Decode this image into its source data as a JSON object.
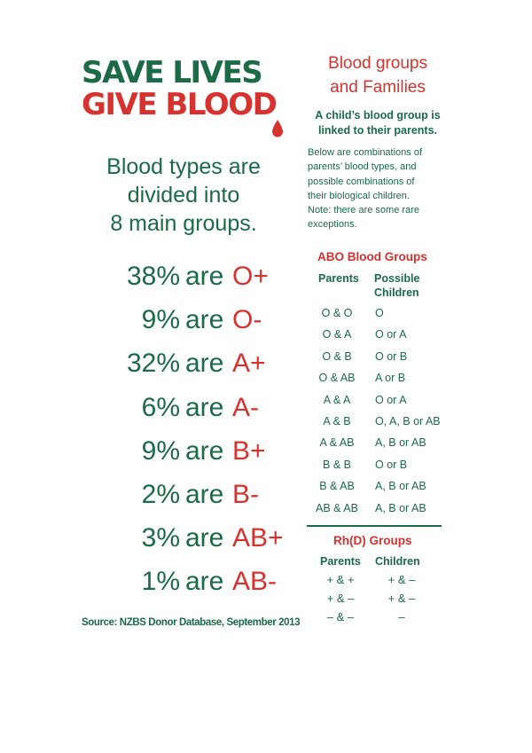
{
  "logo": {
    "line1": "SAVE LIVES",
    "line2": "GIVE BLOOD",
    "drop_icon": "blood-drop-icon",
    "green": "#1b6b47",
    "red": "#d8322f"
  },
  "intro": {
    "lines": [
      "Blood types are",
      "divided into",
      "8 main groups."
    ]
  },
  "stats": [
    {
      "pct": "38%",
      "are": "are",
      "group": "O+"
    },
    {
      "pct": "9%",
      "are": "are",
      "group": "O-"
    },
    {
      "pct": "32%",
      "are": "are",
      "group": "A+"
    },
    {
      "pct": "6%",
      "are": "are",
      "group": "A-"
    },
    {
      "pct": "9%",
      "are": "are",
      "group": "B+"
    },
    {
      "pct": "2%",
      "are": "are",
      "group": "B-"
    },
    {
      "pct": "3%",
      "are": "are",
      "group": "AB+"
    },
    {
      "pct": "1%",
      "are": "are",
      "group": "AB-"
    }
  ],
  "source": "Source: NZBS Donor Database, September 2013",
  "families": {
    "title_lines": [
      "Blood groups",
      "and Families"
    ],
    "lead_lines": [
      "A child’s blood group is",
      "linked to their parents."
    ],
    "desc_lines": [
      "Below are combinations of",
      "parents’ blood types, and",
      "possible combinations of",
      "their biological children.",
      "Note: there are some rare",
      "exceptions."
    ]
  },
  "abo": {
    "title": "ABO Blood Groups",
    "parents_header": "Parents",
    "children_header_lines": [
      "Possible",
      "Children"
    ],
    "rows": [
      {
        "parents": "O & O",
        "children": "O"
      },
      {
        "parents": "O & A",
        "children": "O or A"
      },
      {
        "parents": "O & B",
        "children": "O or B"
      },
      {
        "parents": "O & AB",
        "children": "A or B"
      },
      {
        "parents": "A & A",
        "children": "O or A"
      },
      {
        "parents": "A & B",
        "children": "O, A, B or AB"
      },
      {
        "parents": "A & AB",
        "children": "A, B or AB"
      },
      {
        "parents": "B & B",
        "children": "O or B"
      },
      {
        "parents": "B & AB",
        "children": "A, B or AB"
      },
      {
        "parents": "AB & AB",
        "children": "A, B or AB"
      }
    ]
  },
  "rh": {
    "title": "Rh(D) Groups",
    "parents_header": "Parents",
    "children_header": "Children",
    "rows": [
      {
        "parents": "+ & +",
        "children": "+ & –"
      },
      {
        "parents": "+ & –",
        "children": "+ & –"
      },
      {
        "parents": "– & –",
        "children": "–"
      }
    ]
  }
}
